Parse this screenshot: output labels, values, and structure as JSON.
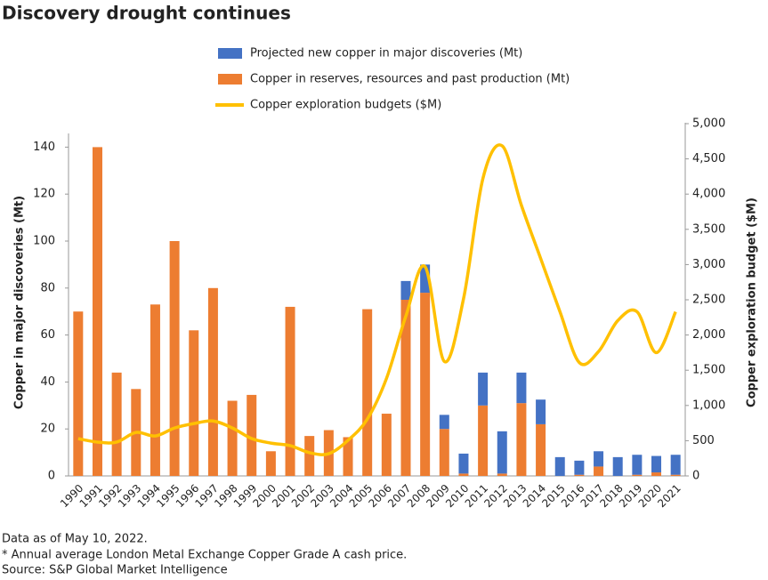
{
  "chart_data": {
    "type": "bar",
    "stacked": true,
    "title": "Discovery drought continues",
    "ylabel": "Copper in major discoveries (Mt)",
    "y2label": "Copper exploration budget ($M)",
    "categories": [
      "1990",
      "1991",
      "1992",
      "1993",
      "1994",
      "1995",
      "1996",
      "1997",
      "1998",
      "1999",
      "2000",
      "2001",
      "2002",
      "2003",
      "2004",
      "2005",
      "2006",
      "2007",
      "2008",
      "2009",
      "2010",
      "2011",
      "2012",
      "2013",
      "2014",
      "2015",
      "2016",
      "2017",
      "2018",
      "2019",
      "2020",
      "2021"
    ],
    "series": [
      {
        "name": "Projected new copper in major discoveries (Mt)",
        "color": "#4472c4",
        "stack_order": 1,
        "values": [
          0,
          0,
          0,
          0,
          0,
          0,
          0,
          0,
          0,
          0,
          0,
          0,
          0,
          0,
          0,
          0,
          0,
          8,
          12,
          6,
          8.5,
          14,
          18,
          13,
          10.5,
          8,
          6,
          6.5,
          8,
          8.5,
          7,
          8.5
        ]
      },
      {
        "name": "Copper in reserves, resources and past production (Mt)",
        "color": "#ed7d31",
        "stack_order": 0,
        "values": [
          70,
          140,
          44,
          37,
          73,
          100,
          62,
          80,
          32,
          34.5,
          10.5,
          72,
          17,
          19.5,
          16.5,
          71,
          26.5,
          75,
          78,
          20,
          1,
          30,
          1,
          31,
          22,
          0,
          0.5,
          4,
          0,
          0.5,
          1.5,
          0.5
        ]
      },
      {
        "name": "Copper exploration budgets ($M)",
        "color": "#ffc000",
        "type": "line",
        "axis": "y2",
        "values": [
          529,
          480,
          480,
          617,
          567,
          680,
          743,
          780,
          680,
          530,
          466,
          430,
          330,
          315,
          505,
          805,
          1385,
          2265,
          2970,
          1625,
          2520,
          4220,
          4685,
          3840,
          3085,
          2330,
          1610,
          1765,
          2205,
          2330,
          1750,
          2330
        ]
      }
    ],
    "ylim": [
      0,
      150
    ],
    "yticks": [
      0,
      20,
      40,
      60,
      80,
      100,
      120,
      140
    ],
    "y2lim": [
      0,
      5000
    ],
    "y2ticks": [
      0,
      500,
      {
        "value": 1000,
        "label": "1,000"
      },
      {
        "value": 1500,
        "label": "1,500"
      },
      {
        "value": 2000,
        "label": "2,000"
      },
      {
        "value": 2500,
        "label": "2,500"
      },
      {
        "value": 3000,
        "label": "3,000"
      },
      {
        "value": 3500,
        "label": "3,500"
      },
      {
        "value": 4000,
        "label": "4,000"
      },
      {
        "value": 4500,
        "label": "4,500"
      },
      {
        "value": 5000,
        "label": "5,000"
      }
    ],
    "notes": [
      "Data as of May 10, 2022.",
      "* Annual average London Metal Exchange Copper Grade A cash price.",
      "Source: S&P Global Market Intelligence"
    ]
  }
}
